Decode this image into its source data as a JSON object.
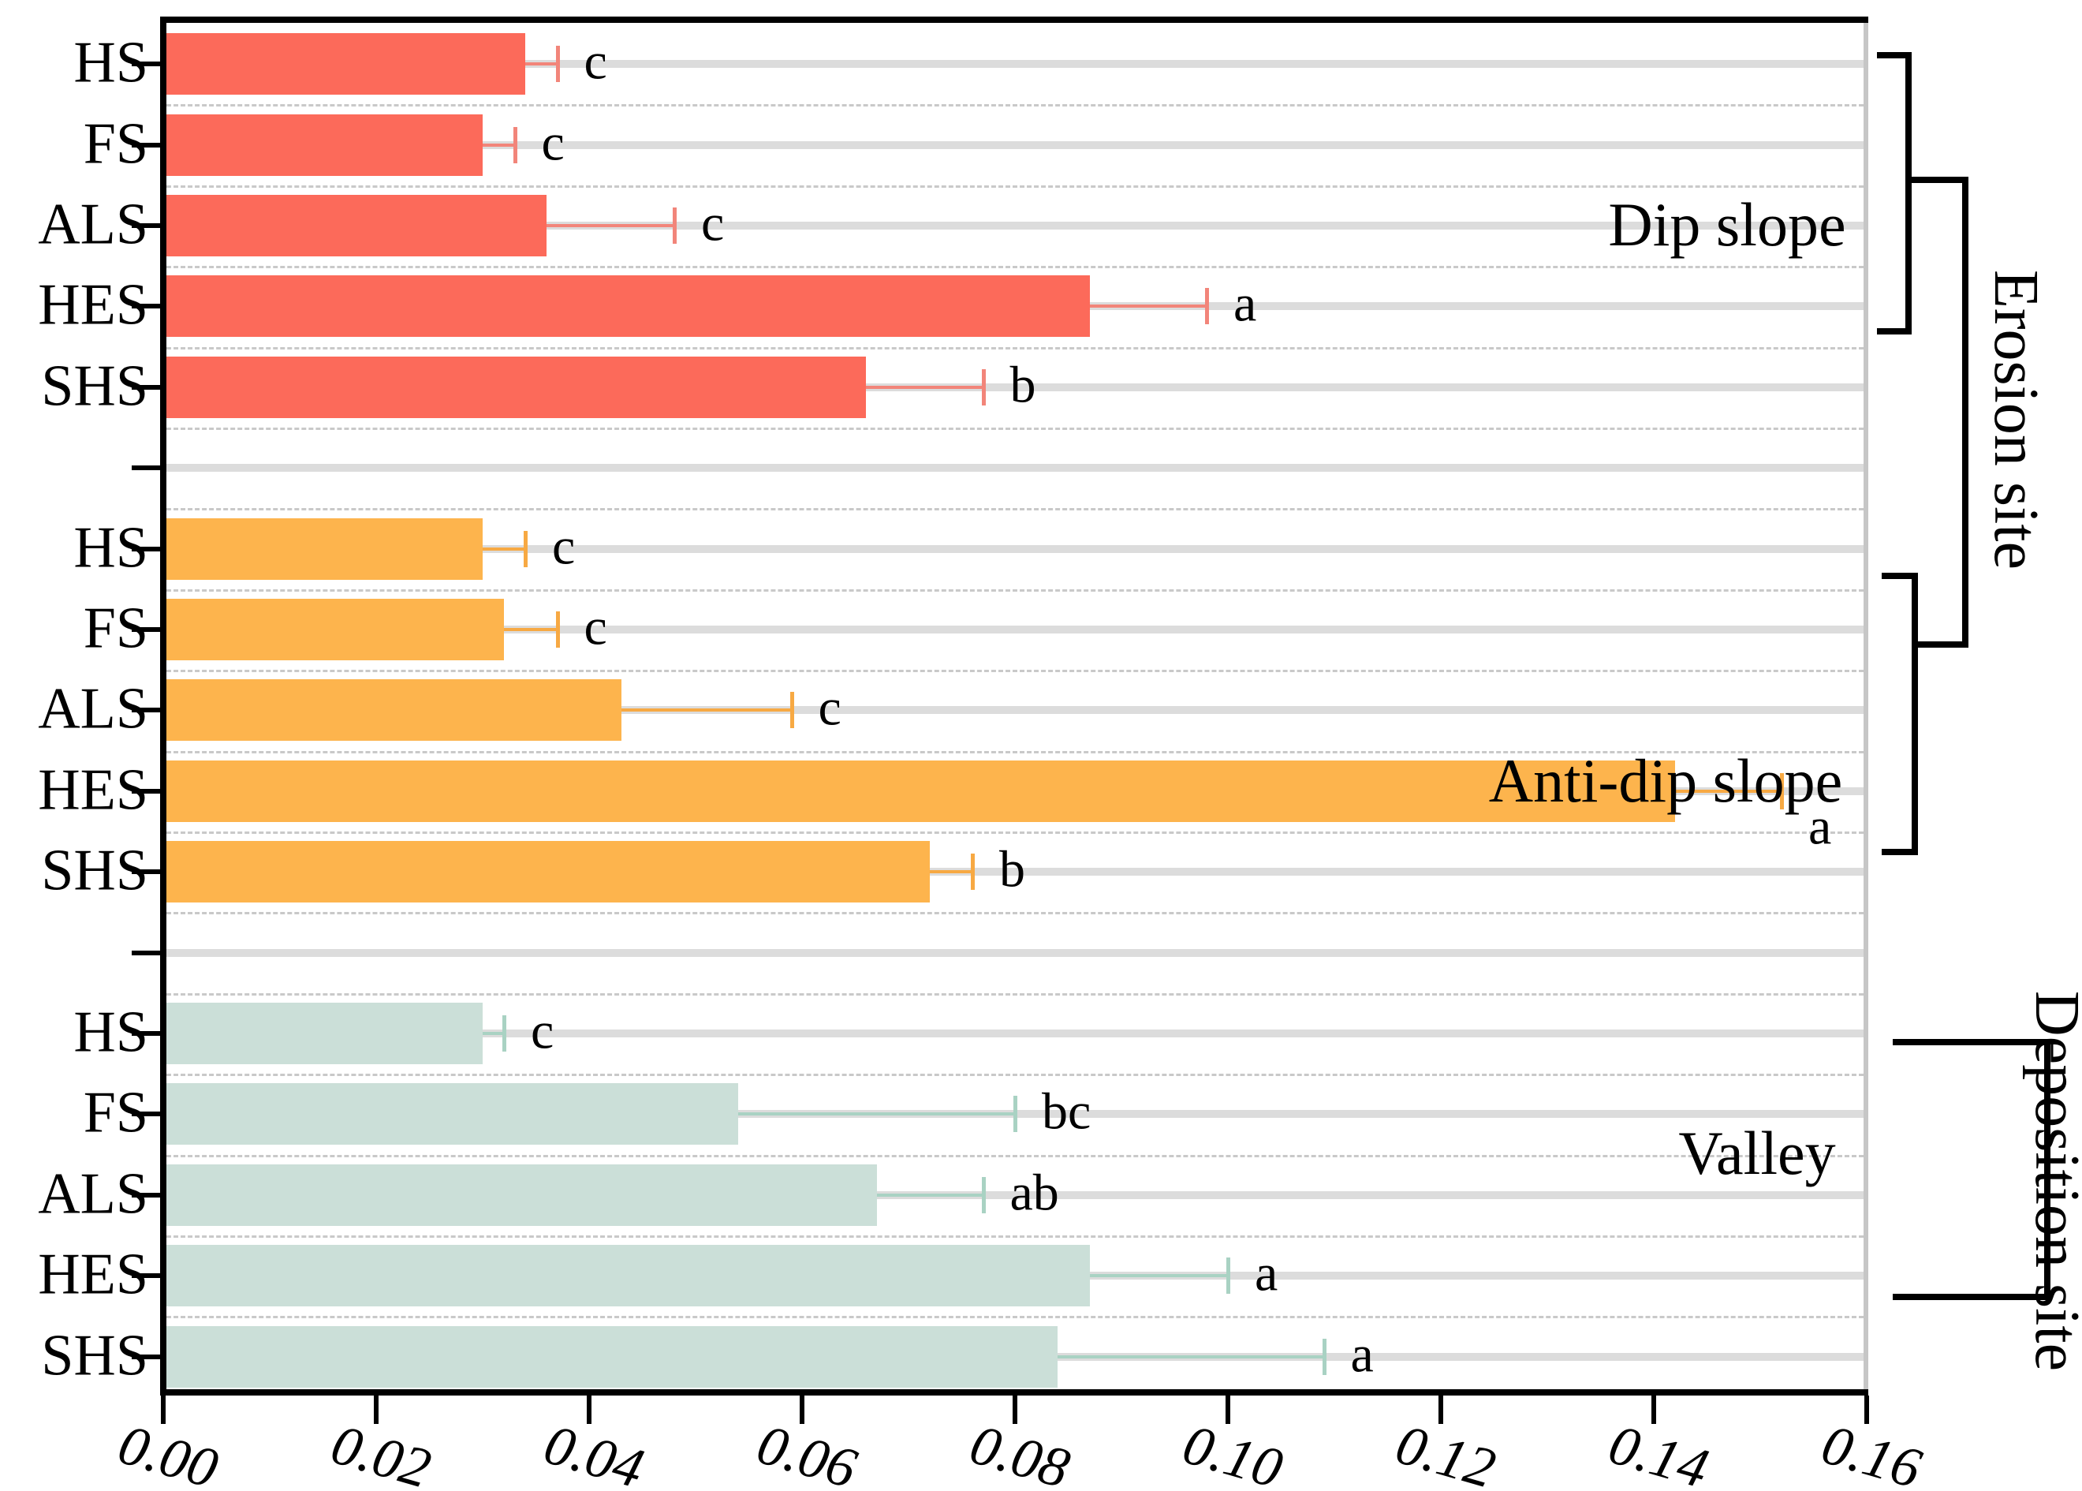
{
  "labels": {
    "dip_slope": "Dip slope",
    "anti_dip_slope": "Anti-dip slope",
    "valley": "Valley",
    "erosion_site": "Erosion site",
    "deposition_site": "Deposition site"
  },
  "chart_data": {
    "type": "bar",
    "orientation": "horizontal",
    "title": "",
    "xlabel": "",
    "ylabel": "",
    "xlim": [
      0.0,
      0.16
    ],
    "x_tick_labels": [
      "0.00",
      "0.02",
      "0.04",
      "0.06",
      "0.08",
      "0.10",
      "0.12",
      "0.14",
      "0.16"
    ],
    "grid": "dashed row separators with gray row center tracks",
    "categories": [
      "HS",
      "FS",
      "ALS",
      "HES",
      "SHS"
    ],
    "series": [
      {
        "name": "Dip slope",
        "site": "Erosion site",
        "color": "#fc6a5a",
        "error_color": "#f2857a",
        "values": [
          0.034,
          0.03,
          0.036,
          0.087,
          0.066
        ],
        "errors_upper": [
          0.003,
          0.003,
          0.012,
          0.011,
          0.011
        ],
        "sig_letters": [
          "c",
          "c",
          "c",
          "a",
          "b"
        ]
      },
      {
        "name": "Anti-dip slope",
        "site": "Erosion site",
        "color": "#fdb44d",
        "error_color": "#f7a943",
        "values": [
          0.03,
          0.032,
          0.043,
          0.142,
          0.072
        ],
        "errors_upper": [
          0.004,
          0.005,
          0.016,
          0.01,
          0.004
        ],
        "sig_letters": [
          "c",
          "c",
          "c",
          "a",
          "b"
        ]
      },
      {
        "name": "Valley",
        "site": "Deposition site",
        "color": "#cbdfd8",
        "error_color": "#a9d2c3",
        "values": [
          0.03,
          0.054,
          0.067,
          0.087,
          0.084
        ],
        "errors_upper": [
          0.002,
          0.026,
          0.01,
          0.013,
          0.025
        ],
        "sig_letters": [
          "c",
          "bc",
          "ab",
          "a",
          "a"
        ]
      }
    ]
  }
}
